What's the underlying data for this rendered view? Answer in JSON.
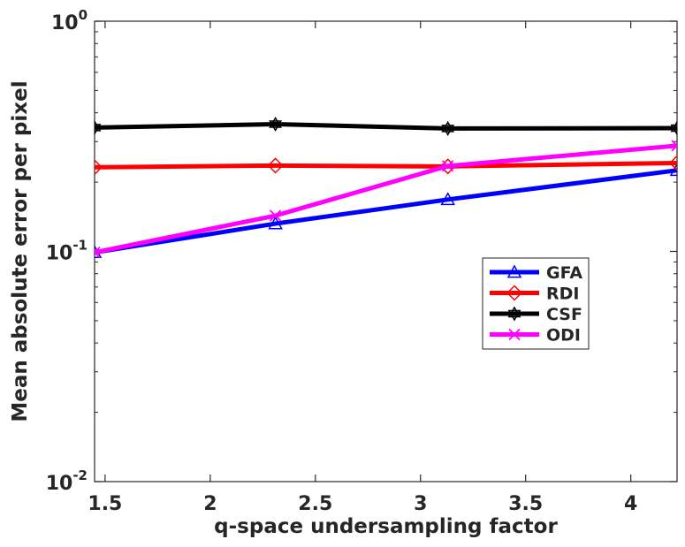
{
  "chart_data": {
    "type": "line",
    "title": "",
    "xlabel": "q-space undersampling factor",
    "ylabel": "Mean absolute error per pixel",
    "yscale": "log",
    "xlim": [
      1.45,
      4.22
    ],
    "ylim": [
      0.01,
      1
    ],
    "grid": false,
    "legend_position": "center-right",
    "x": [
      1.45,
      2.31,
      3.13,
      4.22
    ],
    "x_ticks": [
      1.5,
      2,
      2.5,
      3,
      3.5,
      4
    ],
    "x_tick_labels": [
      "1.5",
      "2",
      "2.5",
      "3",
      "3.5",
      "4"
    ],
    "y_ticks": [
      {
        "value": 1,
        "base": "10",
        "exp": "0"
      },
      {
        "value": 0.1,
        "base": "10",
        "exp": "-1"
      },
      {
        "value": 0.01,
        "base": "10",
        "exp": "-2"
      }
    ],
    "series": [
      {
        "name": "GFA",
        "color": "#0000ff",
        "marker": "triangle",
        "values": [
          0.099,
          0.132,
          0.168,
          0.225
        ]
      },
      {
        "name": "RDI",
        "color": "#ff0000",
        "marker": "diamond",
        "values": [
          0.232,
          0.236,
          0.234,
          0.242
        ]
      },
      {
        "name": "CSF",
        "color": "#000000",
        "marker": "hexagram",
        "values": [
          0.345,
          0.357,
          0.342,
          0.343
        ]
      },
      {
        "name": "ODI",
        "color": "#ff00ff",
        "marker": "x",
        "values": [
          0.099,
          0.143,
          0.235,
          0.288
        ]
      }
    ]
  }
}
